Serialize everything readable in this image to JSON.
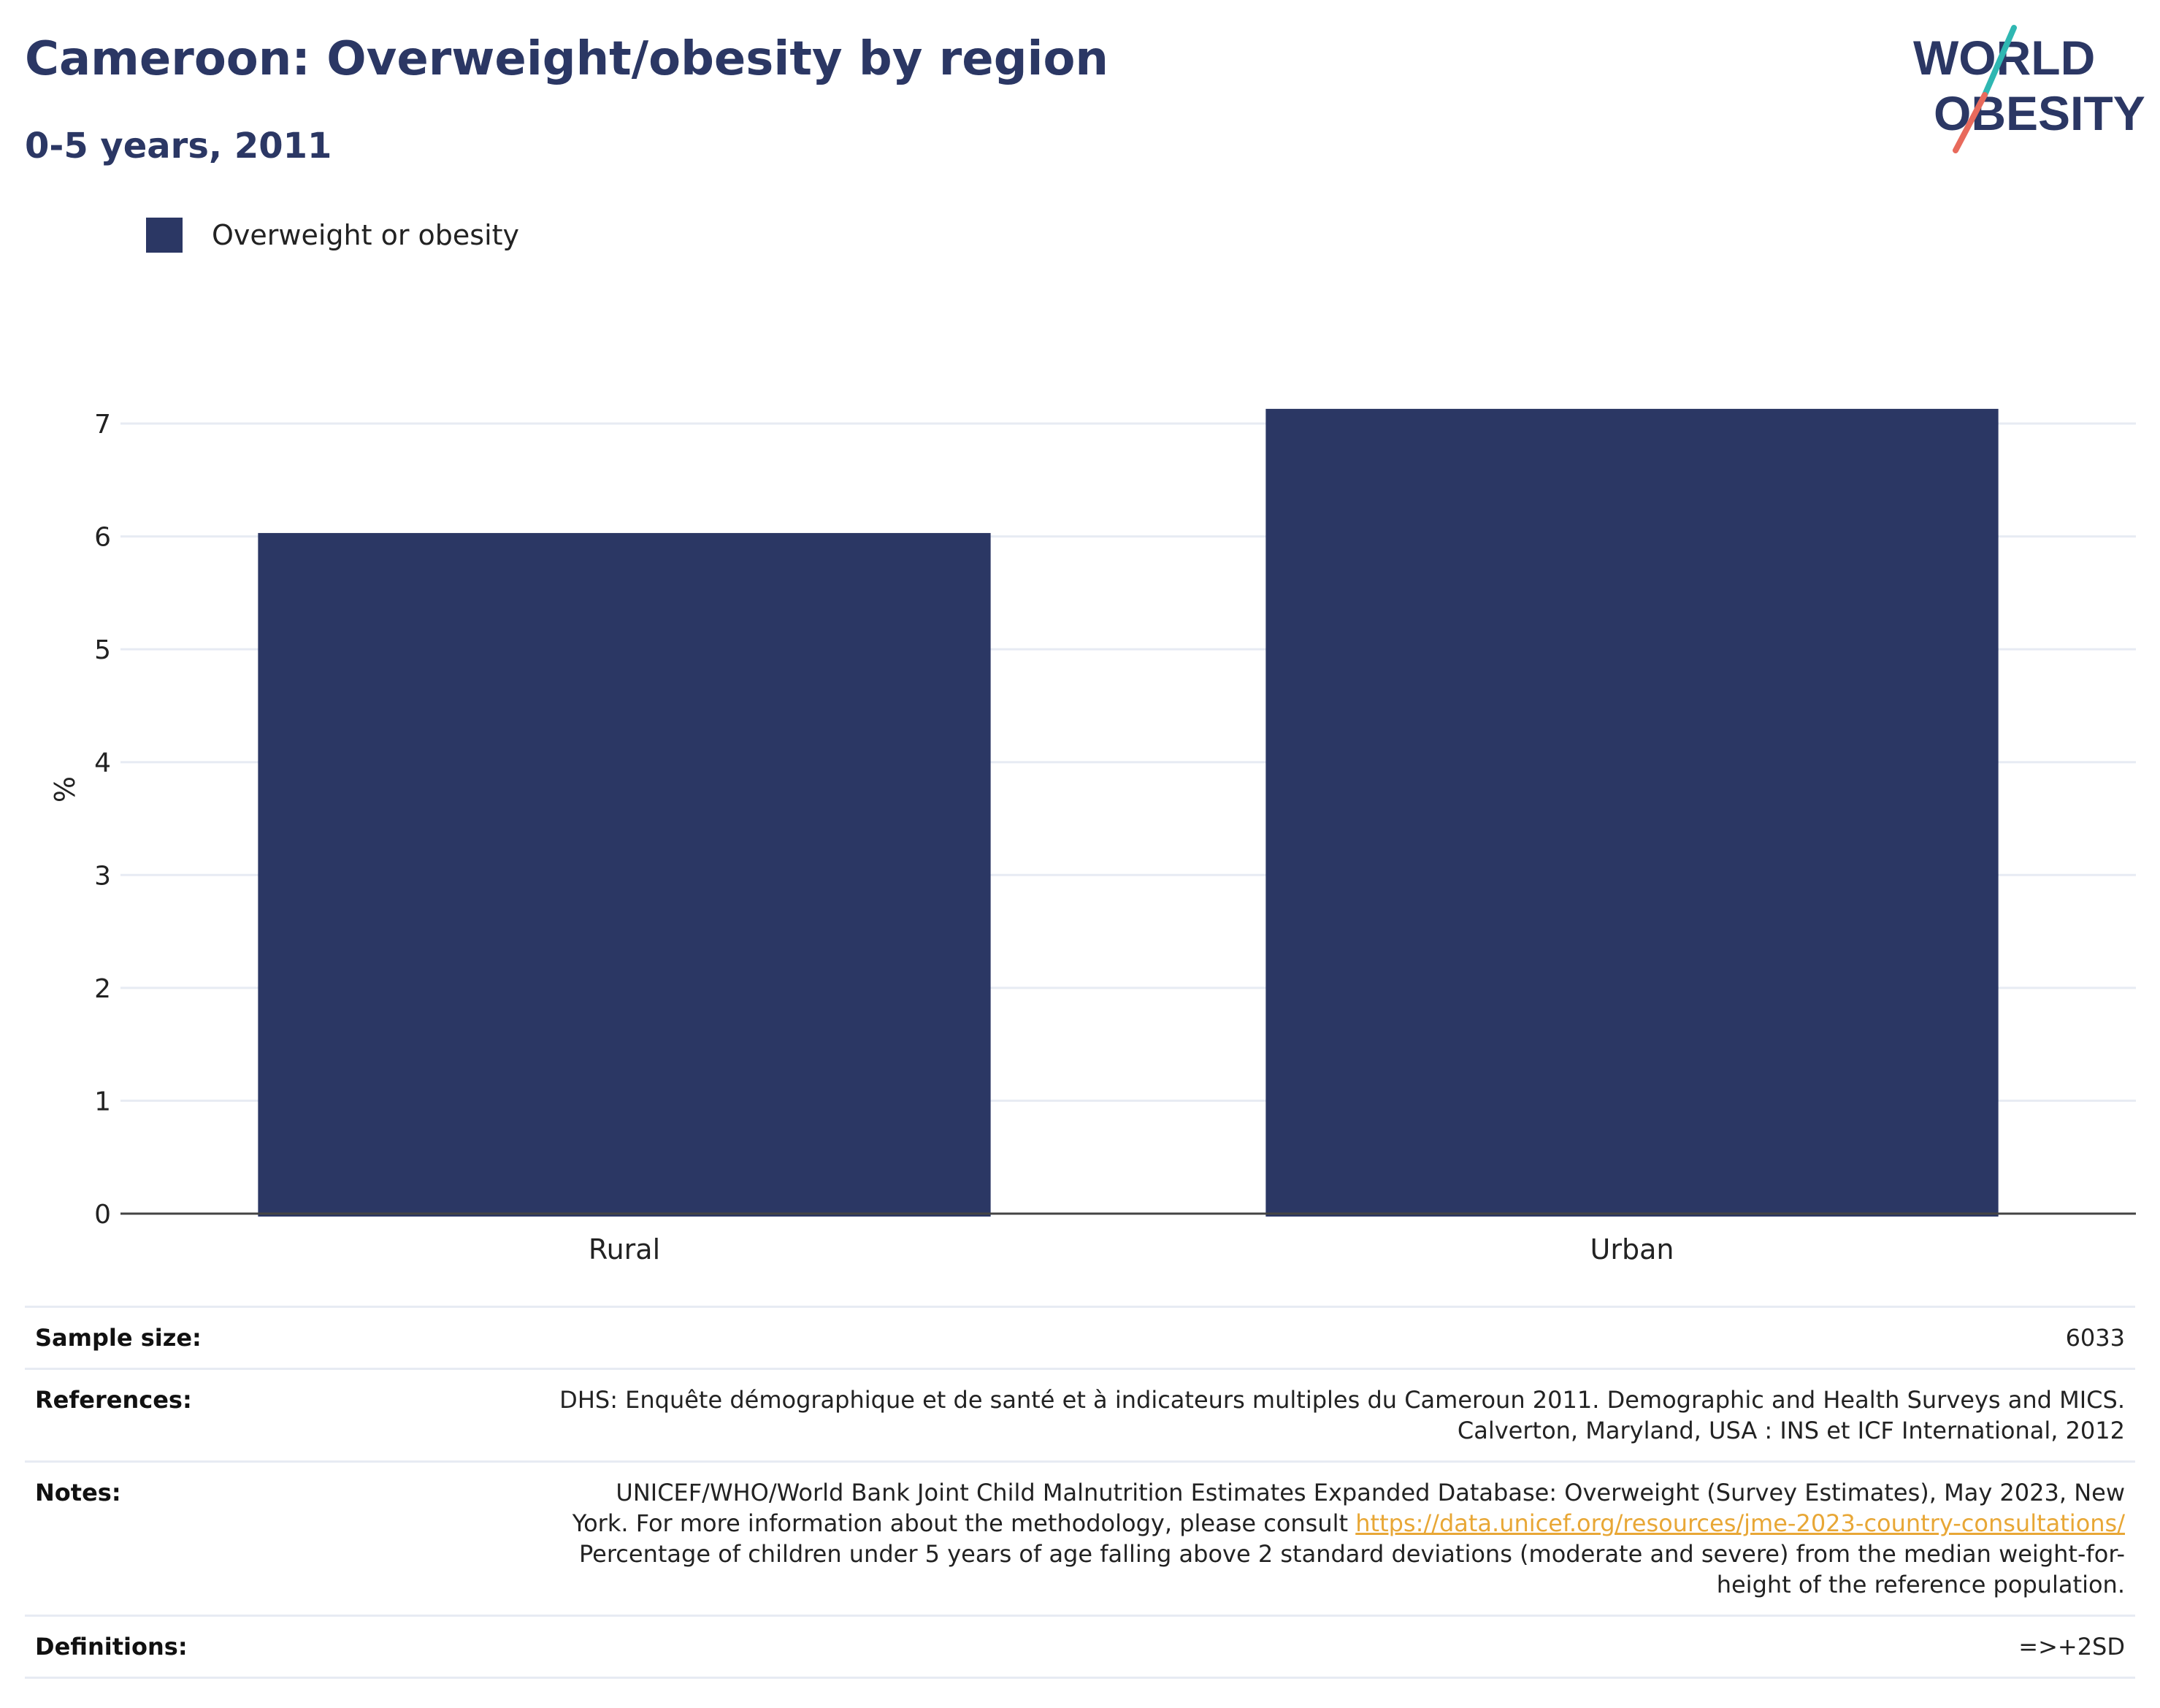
{
  "header": {
    "title": "Cameroon: Overweight/obesity by region",
    "subtitle": "0-5 years, 2011"
  },
  "logo": {
    "line1": "WORLD",
    "line2": "OBESITY",
    "colors": {
      "text": "#2b3764",
      "slash_top": "#2fb7b2",
      "slash_bottom": "#e86a5c"
    }
  },
  "chart_data": {
    "type": "bar",
    "categories": [
      "Rural",
      "Urban"
    ],
    "series": [
      {
        "name": "Overweight or obesity",
        "values": [
          6.03,
          7.13
        ],
        "color": "#2b3764"
      }
    ],
    "ylabel": "%",
    "xlabel": "",
    "ylim": [
      0,
      8
    ],
    "yticks": [
      0,
      1,
      2,
      3,
      4,
      5,
      6,
      7
    ],
    "grid": true,
    "legend": "top-left"
  },
  "info": {
    "sample_size_label": "Sample size:",
    "sample_size_value": "6033",
    "references_label": "References:",
    "references_line1": "DHS: Enquête démographique et de santé et à indicateurs multiples du Cameroun 2011. Demographic and Health Surveys and MICS.",
    "references_line2": "Calverton, Maryland, USA : INS et ICF International, 2012",
    "notes_label": "Notes:",
    "notes_line1": "UNICEF/WHO/World Bank Joint Child Malnutrition Estimates Expanded Database: Overweight (Survey Estimates), May 2023, New",
    "notes_line2_pre": "York. For more information about the methodology, please consult ",
    "notes_link": "https://data.unicef.org/resources/jme-2023-country-consultations/",
    "notes_line3": "Percentage of children under 5 years of age falling above 2 standard deviations (moderate and severe) from the median weight-for-",
    "notes_line4": "height of the reference population.",
    "definitions_label": "Definitions:",
    "definitions_value": "=>+2SD"
  }
}
